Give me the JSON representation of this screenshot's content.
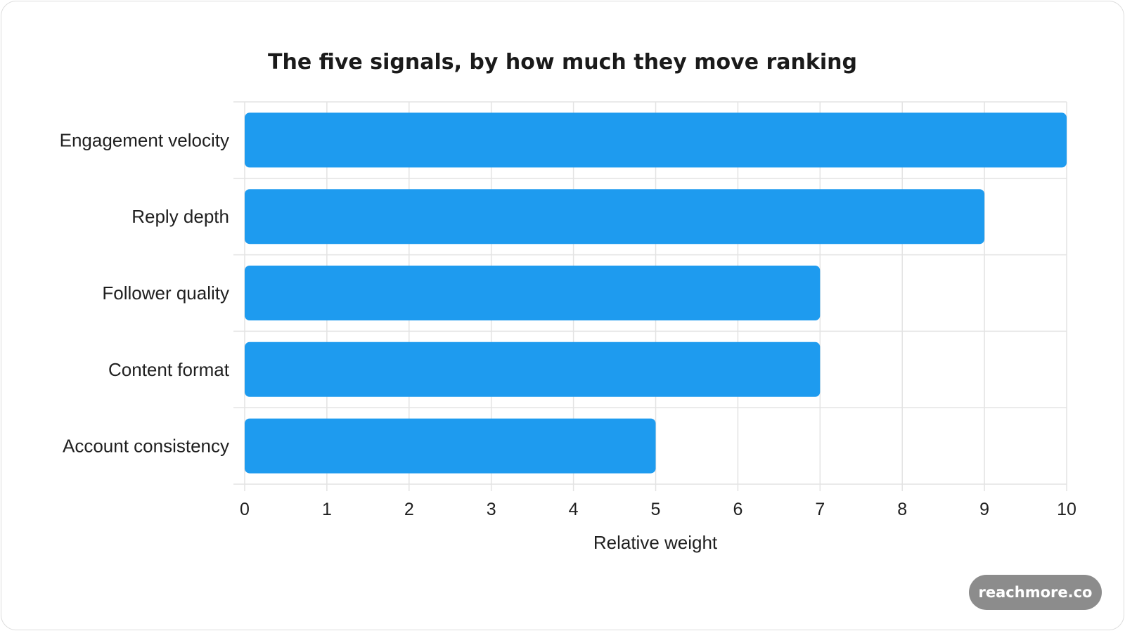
{
  "chart_data": {
    "type": "bar",
    "orientation": "horizontal",
    "title": "The five signals, by how much they move ranking",
    "xlabel": "Relative weight",
    "ylabel": "",
    "categories": [
      "Engagement velocity",
      "Reply depth",
      "Follower quality",
      "Content format",
      "Account consistency"
    ],
    "values": [
      10,
      9,
      7,
      7,
      5
    ],
    "xlim": [
      0,
      10
    ],
    "xticks": [
      "0",
      "1",
      "2",
      "3",
      "4",
      "5",
      "6",
      "7",
      "8",
      "9",
      "10"
    ],
    "grid": true,
    "legend": "none",
    "colors": {
      "bar": "#1e9bef",
      "grid": "#e3e3e3",
      "text": "#1f1f1f"
    }
  },
  "watermark": {
    "text": "reachmore.co"
  }
}
